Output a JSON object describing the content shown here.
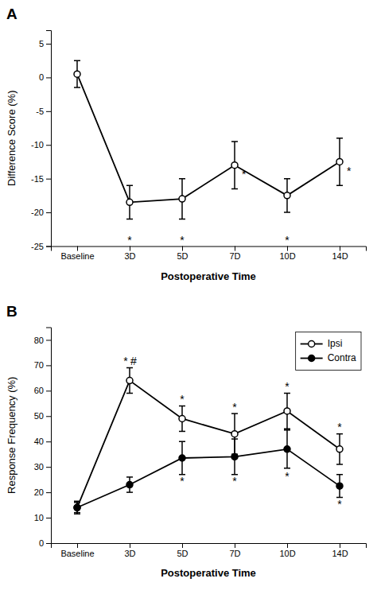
{
  "chart_data": [
    {
      "type": "line",
      "title": "A",
      "categories": [
        "Baseline",
        "3D",
        "5D",
        "7D",
        "10D",
        "14D"
      ],
      "values": [
        0.5,
        -18.5,
        -18.0,
        -13.0,
        -17.5,
        -12.5
      ],
      "errors": [
        2.0,
        2.5,
        3.0,
        3.5,
        2.5,
        3.5
      ],
      "color": "#000000",
      "marker": "open-circle",
      "line_style": "solid",
      "xlabel": "Postoperative Time",
      "ylabel": "Difference Score (%)",
      "ylim": [
        -25,
        7
      ],
      "yticks": [
        -25,
        -20,
        -15,
        -10,
        -5,
        0,
        5
      ],
      "grid": false,
      "annotations": [
        {
          "text": "*",
          "category": "3D",
          "y": -23.5
        },
        {
          "text": "*",
          "category": "5D",
          "y": -23.5
        },
        {
          "text": "*",
          "category": "10D",
          "y": -23.5
        },
        {
          "text": "*",
          "category": "7D",
          "y": -14.5
        },
        {
          "text": "*",
          "category": "14D",
          "y": -14.0
        }
      ]
    },
    {
      "type": "line",
      "title": "B",
      "categories": [
        "Baseline",
        "3D",
        "5D",
        "7D",
        "10D",
        "14D"
      ],
      "series": [
        {
          "name": "Ipsi",
          "color": "#000000",
          "marker": "open-circle",
          "line_style": "solid",
          "values": [
            14.0,
            64.0,
            49.0,
            43.0,
            52.0,
            37.0
          ],
          "errors": [
            2.0,
            5.0,
            5.0,
            8.0,
            7.0,
            6.0
          ]
        },
        {
          "name": "Contra",
          "color": "#000000",
          "marker": "circle",
          "line_style": "solid",
          "values": [
            14.0,
            23.0,
            33.5,
            34.0,
            37.0,
            22.5
          ],
          "errors": [
            2.5,
            3.0,
            6.5,
            7.0,
            7.5,
            4.5
          ]
        }
      ],
      "xlabel": "Postoperative Time",
      "ylabel": "Response Frequency (%)",
      "ylim": [
        0,
        85
      ],
      "yticks": [
        0,
        10,
        20,
        30,
        40,
        50,
        60,
        70,
        80
      ],
      "grid": false,
      "legend": "upper right",
      "annotations": [
        {
          "text": "*",
          "category": "5D",
          "y": 55
        },
        {
          "text": "*",
          "category": "7D",
          "y": 52
        },
        {
          "text": "*",
          "category": "10D",
          "y": 60
        },
        {
          "text": "*",
          "category": "14D",
          "y": 44
        },
        {
          "text": "*",
          "category": "5D",
          "y": 26
        },
        {
          "text": "*",
          "category": "7D",
          "y": 26
        },
        {
          "text": "*",
          "category": "10D",
          "y": 28
        },
        {
          "text": "*",
          "category": "14D",
          "y": 17
        },
        {
          "text": "*",
          "category": "3D",
          "y": 70.0
        },
        {
          "text": "#",
          "category": "3D",
          "y": 70.0
        }
      ]
    }
  ]
}
